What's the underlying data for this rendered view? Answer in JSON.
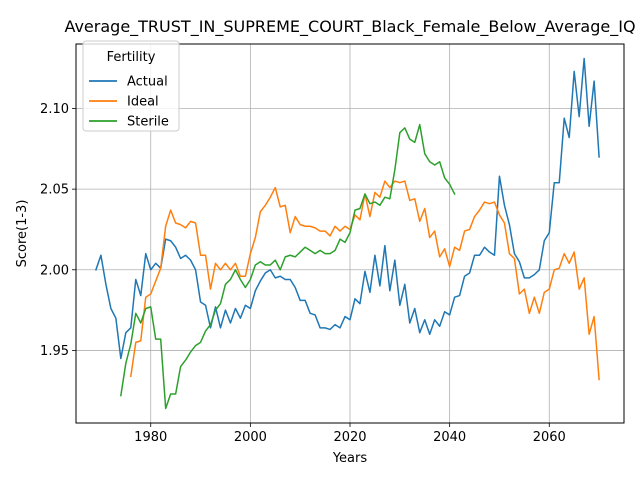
{
  "chart_data": {
    "type": "line",
    "title": "Average_TRUST_IN_SUPREME_COURT_Black_Female_Below_Average_IQ",
    "xlabel": "Years",
    "ylabel": "Score(1-3)",
    "xlim": [
      1965,
      2075
    ],
    "ylim": [
      1.905,
      2.14
    ],
    "x_ticks": [
      1980,
      2000,
      2020,
      2040,
      2060
    ],
    "y_ticks": [
      1.95,
      2.0,
      2.05,
      2.1
    ],
    "y_tick_labels": [
      "1.95",
      "2.00",
      "2.05",
      "2.10"
    ],
    "grid": true,
    "legend": {
      "title": "Fertility",
      "placement": "top-left"
    },
    "series": [
      {
        "name": "Actual",
        "color": "#1f77b4",
        "x": [
          1969,
          1970,
          1971,
          1972,
          1973,
          1974,
          1975,
          1976,
          1977,
          1978,
          1979,
          1980,
          1981,
          1982,
          1983,
          1984,
          1985,
          1986,
          1987,
          1988,
          1989,
          1990,
          1991,
          1992,
          1993,
          1994,
          1995,
          1996,
          1997,
          1998,
          1999,
          2000,
          2001,
          2002,
          2003,
          2004,
          2005,
          2006,
          2007,
          2008,
          2009,
          2010,
          2011,
          2012,
          2013,
          2014,
          2015,
          2016,
          2017,
          2018,
          2019,
          2020,
          2021,
          2022,
          2023,
          2024,
          2025,
          2026,
          2027,
          2028,
          2029,
          2030,
          2031,
          2032,
          2033,
          2034,
          2035,
          2036,
          2037,
          2038,
          2039,
          2040,
          2041,
          2042,
          2043,
          2044,
          2045,
          2046,
          2047,
          2048,
          2049,
          2050,
          2051,
          2052,
          2053,
          2054,
          2055,
          2056,
          2057,
          2058,
          2059,
          2060,
          2061,
          2062,
          2063,
          2064,
          2065,
          2066,
          2067,
          2068,
          2069,
          2070
        ],
        "values": [
          2.0,
          2.009,
          1.991,
          1.976,
          1.97,
          1.945,
          1.961,
          1.964,
          1.994,
          1.984,
          2.01,
          2.0,
          2.004,
          2.001,
          2.019,
          2.018,
          2.014,
          2.007,
          2.009,
          2.006,
          2.0,
          1.98,
          1.978,
          1.964,
          1.977,
          1.964,
          1.975,
          1.967,
          1.976,
          1.97,
          1.978,
          1.976,
          1.987,
          1.993,
          1.998,
          2.0,
          1.995,
          1.996,
          1.994,
          1.994,
          1.989,
          1.981,
          1.981,
          1.973,
          1.972,
          1.964,
          1.964,
          1.963,
          1.966,
          1.964,
          1.971,
          1.969,
          1.982,
          1.979,
          1.999,
          1.986,
          2.009,
          1.99,
          2.015,
          1.987,
          2.006,
          1.978,
          1.991,
          1.967,
          1.976,
          1.961,
          1.969,
          1.96,
          1.969,
          1.965,
          1.974,
          1.972,
          1.983,
          1.984,
          1.996,
          1.998,
          2.009,
          2.009,
          2.014,
          2.011,
          2.009,
          2.058,
          2.04,
          2.028,
          2.01,
          2.005,
          1.995,
          1.995,
          1.997,
          2.0,
          2.018,
          2.023,
          2.054,
          2.054,
          2.094,
          2.082,
          2.123,
          2.095,
          2.131,
          2.089,
          2.117,
          2.07
        ]
      },
      {
        "name": "Ideal",
        "color": "#ff7f0e",
        "x": [
          1976,
          1977,
          1978,
          1979,
          1980,
          1981,
          1982,
          1983,
          1984,
          1985,
          1986,
          1987,
          1988,
          1989,
          1990,
          1991,
          1992,
          1993,
          1994,
          1995,
          1996,
          1997,
          1998,
          1999,
          2000,
          2001,
          2002,
          2003,
          2004,
          2005,
          2006,
          2007,
          2008,
          2009,
          2010,
          2011,
          2012,
          2013,
          2014,
          2015,
          2016,
          2017,
          2018,
          2019,
          2020,
          2021,
          2022,
          2023,
          2024,
          2025,
          2026,
          2027,
          2028,
          2029,
          2030,
          2031,
          2032,
          2033,
          2034,
          2035,
          2036,
          2037,
          2038,
          2039,
          2040,
          2041,
          2042,
          2043,
          2044,
          2045,
          2046,
          2047,
          2048,
          2049,
          2050,
          2051,
          2052,
          2053,
          2054,
          2055,
          2056,
          2057,
          2058,
          2059,
          2060,
          2061,
          2062,
          2063,
          2064,
          2065,
          2066,
          2067,
          2068,
          2069,
          2070
        ],
        "values": [
          1.934,
          1.955,
          1.956,
          1.983,
          1.985,
          1.993,
          2.001,
          2.027,
          2.037,
          2.029,
          2.028,
          2.026,
          2.03,
          2.029,
          2.009,
          2.009,
          1.988,
          2.004,
          2.0,
          2.004,
          2.0,
          2.004,
          1.996,
          1.996,
          2.01,
          2.02,
          2.036,
          2.04,
          2.045,
          2.051,
          2.039,
          2.04,
          2.023,
          2.033,
          2.028,
          2.027,
          2.027,
          2.026,
          2.024,
          2.024,
          2.021,
          2.027,
          2.024,
          2.027,
          2.025,
          2.034,
          2.031,
          2.047,
          2.033,
          2.048,
          2.045,
          2.055,
          2.051,
          2.055,
          2.054,
          2.055,
          2.043,
          2.044,
          2.03,
          2.038,
          2.02,
          2.024,
          2.008,
          2.013,
          2.002,
          2.014,
          2.012,
          2.024,
          2.025,
          2.033,
          2.037,
          2.042,
          2.041,
          2.042,
          2.034,
          2.029,
          2.01,
          2.007,
          1.985,
          1.988,
          1.973,
          1.983,
          1.973,
          1.986,
          1.988,
          2.0,
          2.001,
          2.01,
          2.004,
          2.011,
          1.988,
          1.995,
          1.96,
          1.971,
          1.932
        ]
      },
      {
        "name": "Sterile",
        "color": "#2ca02c",
        "x": [
          1974,
          1975,
          1976,
          1977,
          1978,
          1979,
          1980,
          1981,
          1982,
          1983,
          1984,
          1985,
          1986,
          1987,
          1988,
          1989,
          1990,
          1991,
          1992,
          1993,
          1994,
          1995,
          1996,
          1997,
          1998,
          1999,
          2000,
          2001,
          2002,
          2003,
          2004,
          2005,
          2006,
          2007,
          2008,
          2009,
          2010,
          2011,
          2012,
          2013,
          2014,
          2015,
          2016,
          2017,
          2018,
          2019,
          2020,
          2021,
          2022,
          2023,
          2024,
          2025,
          2026,
          2027,
          2028,
          2029,
          2030,
          2031,
          2032,
          2033,
          2034,
          2035,
          2036,
          2037,
          2038,
          2039,
          2040,
          2041
        ],
        "values": [
          1.922,
          1.942,
          1.954,
          1.973,
          1.967,
          1.976,
          1.977,
          1.957,
          1.957,
          1.914,
          1.923,
          1.923,
          1.94,
          1.944,
          1.949,
          1.953,
          1.955,
          1.962,
          1.966,
          1.975,
          1.979,
          1.991,
          1.994,
          2.0,
          1.994,
          1.989,
          1.994,
          2.003,
          2.005,
          2.003,
          2.003,
          2.006,
          2.0,
          2.008,
          2.009,
          2.008,
          2.011,
          2.014,
          2.012,
          2.01,
          2.012,
          2.01,
          2.01,
          2.012,
          2.019,
          2.017,
          2.023,
          2.037,
          2.038,
          2.047,
          2.041,
          2.042,
          2.04,
          2.045,
          2.044,
          2.062,
          2.085,
          2.088,
          2.081,
          2.079,
          2.09,
          2.072,
          2.067,
          2.065,
          2.067,
          2.057,
          2.053,
          2.047
        ]
      }
    ]
  }
}
